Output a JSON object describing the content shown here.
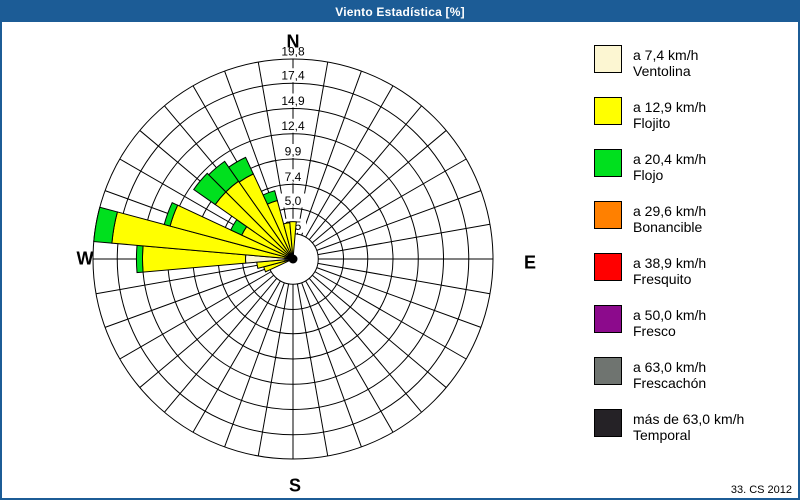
{
  "window": {
    "title": "Viento Estadística [%]",
    "footer": "33. CS 2012"
  },
  "compass": {
    "north": "N",
    "east": "E",
    "south": "S",
    "west": "W"
  },
  "chart_data": {
    "type": "windrose-polar-bar",
    "unit": "%",
    "sector_width_deg": 10,
    "spokes_every_deg": 10,
    "rmax_value": 19.8,
    "rings": {
      "values": [
        2.5,
        5.0,
        7.4,
        9.9,
        12.4,
        14.9,
        17.4,
        19.8
      ],
      "labels": [
        "2,5",
        "5,0",
        "7,4",
        "9,9",
        "12,4",
        "14,9",
        "17,4",
        "19,8"
      ]
    },
    "series_order": [
      "ventolina",
      "flojito",
      "flojo"
    ],
    "colors": {
      "ventolina": "#FCF6D2",
      "flojito": "#FFFF00",
      "flojo": "#00E01E",
      "bonancible": "#FF8000",
      "fresquito": "#FF0000",
      "fresco": "#8C0A8C",
      "frescachon": "#6F7470",
      "temporal": "#252226",
      "grid": "#000000",
      "titlebar": "#1C5C96"
    },
    "petals_cumulative_pct": [
      {
        "dir_deg": 250,
        "ventolina": 0.4,
        "flojito": 3.0,
        "flojo": 3.0
      },
      {
        "dir_deg": 260,
        "ventolina": 0.8,
        "flojito": 3.6,
        "flojo": 3.6
      },
      {
        "dir_deg": 270,
        "ventolina": 4.7,
        "flojito": 14.9,
        "flojo": 15.5
      },
      {
        "dir_deg": 280,
        "ventolina": 0.8,
        "flojito": 18.0,
        "flojo": 19.8
      },
      {
        "dir_deg": 290,
        "ventolina": 0.7,
        "flojito": 12.6,
        "flojo": 13.2
      },
      {
        "dir_deg": 300,
        "ventolina": 0.6,
        "flojito": 5.6,
        "flojo": 6.8
      },
      {
        "dir_deg": 310,
        "ventolina": 0.6,
        "flojito": 9.4,
        "flojo": 12.0
      },
      {
        "dir_deg": 320,
        "ventolina": 0.6,
        "flojito": 9.4,
        "flojo": 11.8
      },
      {
        "dir_deg": 330,
        "ventolina": 0.6,
        "flojito": 9.3,
        "flojo": 11.1
      },
      {
        "dir_deg": 340,
        "ventolina": 0.5,
        "flojito": 6.0,
        "flojo": 7.0
      },
      {
        "dir_deg": 350,
        "ventolina": 0.4,
        "flojito": 3.6,
        "flojo": 3.6
      },
      {
        "dir_deg": 0,
        "ventolina": 0.5,
        "flojito": 3.7,
        "flojo": 3.7
      }
    ]
  },
  "legend": {
    "items": [
      {
        "color": "#FCF6D2",
        "speed": "a 7,4 km/h",
        "name": "Ventolina"
      },
      {
        "color": "#FFFF00",
        "speed": "a 12,9 km/h",
        "name": "Flojito"
      },
      {
        "color": "#00E01E",
        "speed": "a 20,4 km/h",
        "name": "Flojo"
      },
      {
        "color": "#FF8000",
        "speed": "a 29,6 km/h",
        "name": "Bonancible"
      },
      {
        "color": "#FF0000",
        "speed": "a 38,9 km/h",
        "name": "Fresquito"
      },
      {
        "color": "#8C0A8C",
        "speed": "a 50,0 km/h",
        "name": "Fresco"
      },
      {
        "color": "#6F7470",
        "speed": "a 63,0 km/h",
        "name": "Frescachón"
      },
      {
        "color": "#252226",
        "speed": "más de 63,0 km/h",
        "name": "Temporal"
      }
    ]
  }
}
